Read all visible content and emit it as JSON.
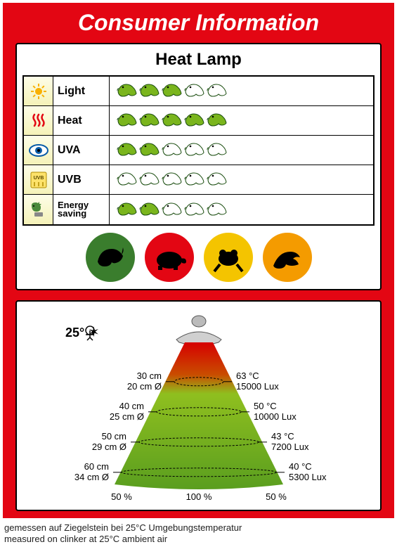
{
  "page": {
    "title": "Consumer Information",
    "background_color": "#e30613",
    "text_color_title": "#ffffff"
  },
  "ratings_card": {
    "title": "Heat Lamp",
    "max_rating": 5,
    "icon_filled_color": "#7ab51d",
    "icon_empty_color": "#ffffff",
    "rows": [
      {
        "icon": "sun",
        "icon_color": "#f9b000",
        "label": "Light",
        "rating": 3
      },
      {
        "icon": "heat",
        "icon_color": "#e30613",
        "label": "Heat",
        "rating": 5
      },
      {
        "icon": "eye",
        "icon_color": "#0a5ca8",
        "label": "UVA",
        "rating": 2
      },
      {
        "icon": "uvb",
        "icon_color": "#b08c00",
        "label": "UVB",
        "rating": 0
      },
      {
        "icon": "energy",
        "icon_color": "#4a8a3a",
        "label": "Energy saving",
        "rating": 2,
        "small_label": true
      }
    ],
    "suitability": [
      {
        "reptile": "chameleon",
        "bg": "#3a7d2d"
      },
      {
        "reptile": "turtle",
        "bg": "#e30613"
      },
      {
        "reptile": "frog",
        "bg": "#f4c400"
      },
      {
        "reptile": "lizard",
        "bg": "#f49b00"
      }
    ]
  },
  "beam_card": {
    "ambient_label": "25°",
    "lamp_color": "#cccccc",
    "top_zone_color": "#e30613",
    "cone_gradient_top": "#d60000",
    "cone_gradient_mid": "#8fbf1f",
    "cone_gradient_bot": "#5a9e1f",
    "levels": [
      {
        "dist": "30 cm",
        "diam": "20 cm Ø",
        "temp": "63 °C",
        "lux": "15000 Lux"
      },
      {
        "dist": "40 cm",
        "diam": "25 cm Ø",
        "temp": "50 °C",
        "lux": "10000 Lux"
      },
      {
        "dist": "50 cm",
        "diam": "29 cm Ø",
        "temp": "43 °C",
        "lux": "7200 Lux"
      },
      {
        "dist": "60 cm",
        "diam": "34 cm Ø",
        "temp": "40 °C",
        "lux": "5300 Lux"
      }
    ],
    "footer_percent_left": "50 %",
    "footer_percent_center": "100 %",
    "footer_percent_right": "50 %"
  },
  "footnote": {
    "line1": "gemessen auf Ziegelstein bei 25°C Umgebungstemperatur",
    "line2": "measured on clinker at 25°C ambient air"
  }
}
